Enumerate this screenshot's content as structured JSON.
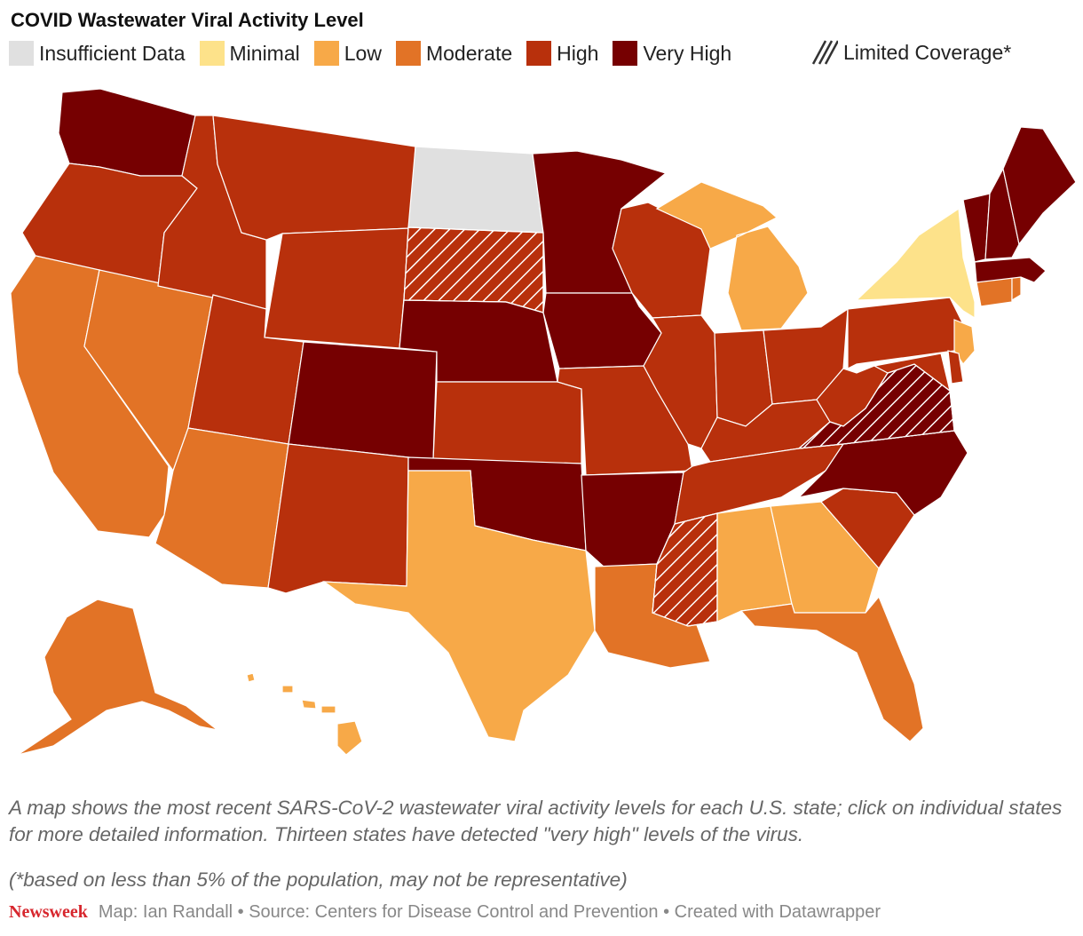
{
  "title": "COVID Wastewater Viral Activity Level",
  "legend": [
    {
      "label": "Insufficient Data",
      "color": "#e0e0e0"
    },
    {
      "label": "Minimal",
      "color": "#fde28a"
    },
    {
      "label": "Low",
      "color": "#f7a948"
    },
    {
      "label": "Moderate",
      "color": "#e27326"
    },
    {
      "label": "High",
      "color": "#b8300c"
    },
    {
      "label": "Very High",
      "color": "#760001"
    }
  ],
  "limited_label": "Limited Coverage*",
  "caption": "A map shows the most recent SARS-CoV-2 wastewater viral activity levels for each U.S. state; click on individual states for more detailed information. Thirteen states have detected \"very high\" levels of the virus.",
  "footnote": "(*based on less than 5% of the population, may not be representative)",
  "footer": {
    "brand": "Newsweek",
    "credits": "Map: Ian Randall • Source: Centers for Disease Control and Prevention • Created with Datawrapper"
  },
  "states": {
    "WA": "Very High",
    "OR": "High",
    "CA": "Moderate",
    "NV": "Moderate",
    "ID": "High",
    "MT": "High",
    "WY": "High",
    "UT": "High",
    "AZ": "Moderate",
    "CO": "Very High",
    "NM": "High",
    "ND": "Insufficient Data",
    "SD": "High",
    "NE": "Very High",
    "KS": "High",
    "OK": "Very High",
    "TX": "Low",
    "MN": "Very High",
    "IA": "Very High",
    "MO": "High",
    "AR": "Very High",
    "LA": "Moderate",
    "WI": "High",
    "IL": "High",
    "MI": "Low",
    "IN": "High",
    "OH": "High",
    "KY": "High",
    "TN": "High",
    "MS": "High",
    "AL": "Low",
    "GA": "Low",
    "FL": "Moderate",
    "SC": "High",
    "NC": "Very High",
    "VA": "Very High",
    "WV": "High",
    "PA": "High",
    "NY": "Minimal",
    "NJ": "Low",
    "DE": "High",
    "MD": "High",
    "CT": "Moderate",
    "RI": "Moderate",
    "MA": "Very High",
    "VT": "Very High",
    "NH": "Very High",
    "ME": "Very High",
    "AK": "Moderate",
    "HI": "Low"
  },
  "limited_coverage": [
    "SD",
    "MS",
    "VA"
  ]
}
